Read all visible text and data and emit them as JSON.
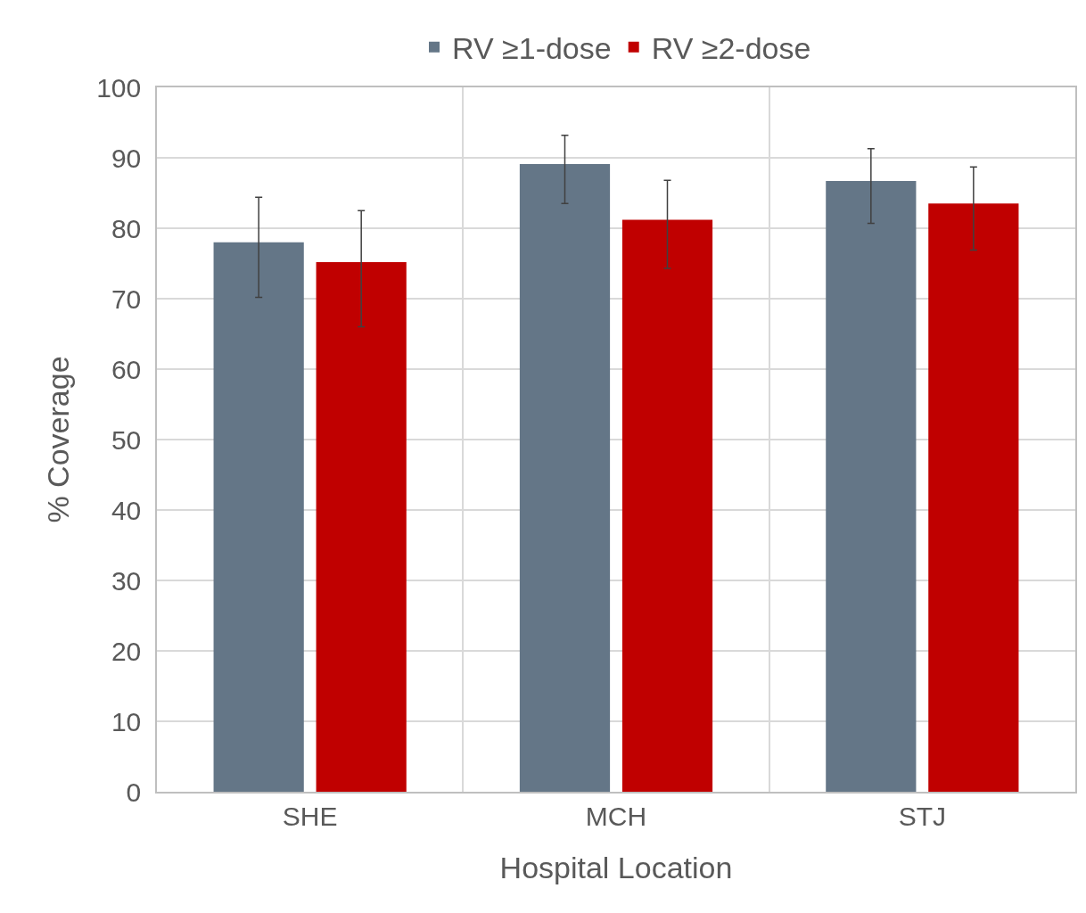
{
  "chart_data": {
    "type": "bar",
    "xlabel": "Hospital Location",
    "ylabel": "% Coverage",
    "categories": [
      "SHE",
      "MCH",
      "STJ"
    ],
    "series": [
      {
        "name": "RV ≥1-dose",
        "color": "#647687",
        "values": [
          78,
          89.1,
          86.7
        ],
        "errors": [
          [
            70.2,
            84.4
          ],
          [
            83.5,
            93.2
          ],
          [
            80.7,
            91.3
          ]
        ]
      },
      {
        "name": "RV ≥2-dose",
        "color": "#c00000",
        "values": [
          75.2,
          81.2,
          83.5
        ],
        "errors": [
          [
            66,
            82.5
          ],
          [
            74.3,
            86.8
          ],
          [
            76.9,
            88.7
          ]
        ]
      }
    ],
    "ylim": [
      0,
      100
    ],
    "yticks": [
      0,
      10,
      20,
      30,
      40,
      50,
      60,
      70,
      80,
      90,
      100
    ],
    "grid": true,
    "legend": "top"
  }
}
